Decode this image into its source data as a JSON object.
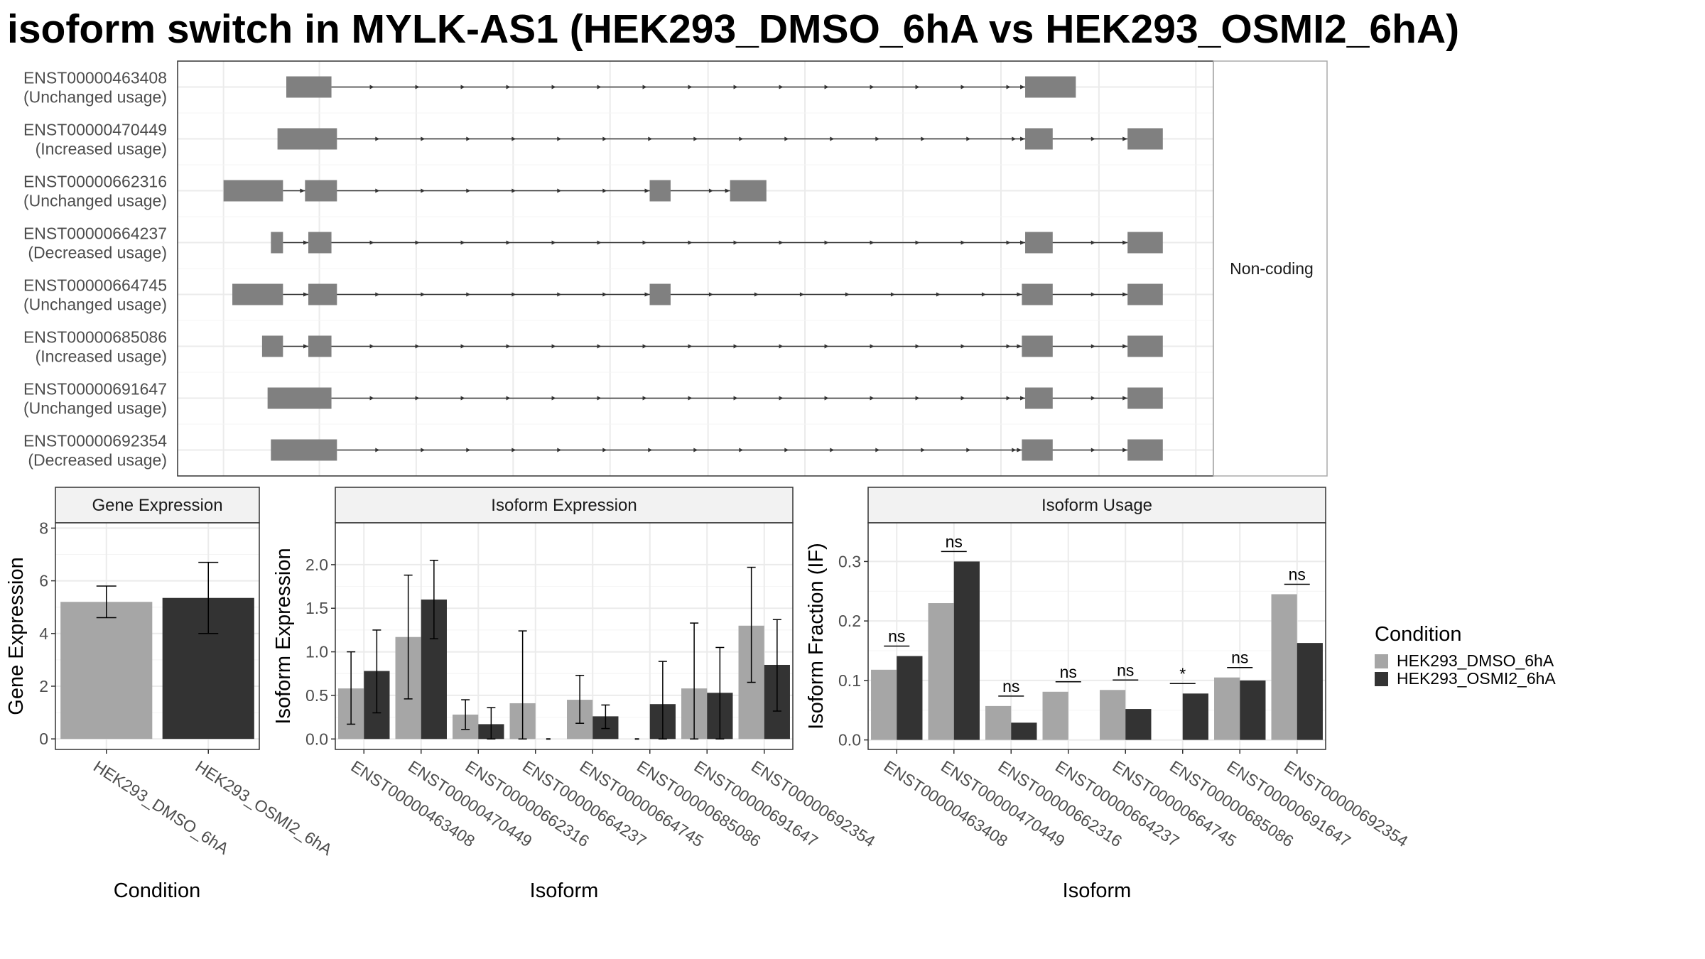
{
  "title": "isoform switch in MYLK-AS1 (HEK293_DMSO_6hA vs HEK293_OSMI2_6hA)",
  "colors": {
    "dmso": "#a6a6a6",
    "osmi": "#333333",
    "exon": "#808080",
    "strip": "#f2f2f2",
    "grid": "#ebebeb"
  },
  "chart_data": [
    {
      "type": "gene_structure",
      "facet_label": "Non-coding",
      "isoforms": [
        {
          "id": "ENST00000463408",
          "usage": "(Unchanged usage)",
          "exons": [
            [
              260,
              301
            ],
            [
              931,
              977
            ]
          ]
        },
        {
          "id": "ENST00000470449",
          "usage": "(Increased usage)",
          "exons": [
            [
              252,
              306
            ],
            [
              931,
              956
            ],
            [
              1024,
              1056
            ]
          ]
        },
        {
          "id": "ENST00000662316",
          "usage": "(Unchanged usage)",
          "exons": [
            [
              203,
              257
            ],
            [
              277,
              306
            ],
            [
              590,
              609
            ],
            [
              663,
              696
            ]
          ]
        },
        {
          "id": "ENST00000664237",
          "usage": "(Decreased usage)",
          "exons": [
            [
              246,
              257
            ],
            [
              280,
              301
            ],
            [
              931,
              956
            ],
            [
              1024,
              1056
            ]
          ]
        },
        {
          "id": "ENST00000664745",
          "usage": "(Unchanged usage)",
          "exons": [
            [
              211,
              257
            ],
            [
              280,
              306
            ],
            [
              590,
              609
            ],
            [
              928,
              956
            ],
            [
              1024,
              1056
            ]
          ]
        },
        {
          "id": "ENST00000685086",
          "usage": "(Increased usage)",
          "exons": [
            [
              238,
              257
            ],
            [
              280,
              301
            ],
            [
              928,
              956
            ],
            [
              1024,
              1056
            ]
          ]
        },
        {
          "id": "ENST00000691647",
          "usage": "(Unchanged usage)",
          "exons": [
            [
              243,
              301
            ],
            [
              931,
              956
            ],
            [
              1024,
              1056
            ]
          ]
        },
        {
          "id": "ENST00000692354",
          "usage": "(Decreased usage)",
          "exons": [
            [
              246,
              306
            ],
            [
              928,
              956
            ],
            [
              1024,
              1056
            ]
          ]
        }
      ]
    },
    {
      "type": "bar",
      "title": "Gene Expression",
      "xlabel": "Condition",
      "ylabel": "Gene Expression",
      "categories": [
        "HEK293_DMSO_6hA",
        "HEK293_OSMI2_6hA"
      ],
      "values": [
        5.2,
        5.35
      ],
      "error_low": [
        4.6,
        4.0
      ],
      "error_high": [
        5.8,
        6.7
      ],
      "yticks": [
        0,
        2,
        4,
        6,
        8
      ],
      "ylim": [
        -0.4,
        8.2
      ]
    },
    {
      "type": "bar",
      "title": "Isoform Expression",
      "xlabel": "Isoform",
      "ylabel": "Isoform Expression",
      "categories": [
        "ENST00000463408",
        "ENST00000470449",
        "ENST00000662316",
        "ENST00000664237",
        "ENST00000664745",
        "ENST00000685086",
        "ENST00000691647",
        "ENST00000692354"
      ],
      "yticks": [
        0.0,
        0.5,
        1.0,
        1.5,
        2.0
      ],
      "ylim": [
        -0.12,
        2.48
      ],
      "series": [
        {
          "name": "HEK293_DMSO_6hA",
          "values": [
            0.58,
            1.17,
            0.28,
            0.41,
            0.45,
            0.0,
            0.58,
            1.3
          ],
          "error_low": [
            0.17,
            0.46,
            0.11,
            0.0,
            0.18,
            0.0,
            0.0,
            0.65
          ],
          "error_high": [
            1.0,
            1.88,
            0.45,
            1.24,
            0.73,
            0.0,
            1.33,
            1.97
          ]
        },
        {
          "name": "HEK293_OSMI2_6hA",
          "values": [
            0.78,
            1.6,
            0.17,
            0.0,
            0.26,
            0.4,
            0.53,
            0.85
          ],
          "error_low": [
            0.3,
            1.15,
            0.0,
            0.0,
            0.12,
            0.0,
            0.0,
            0.32
          ],
          "error_high": [
            1.25,
            2.05,
            0.36,
            0.0,
            0.39,
            0.89,
            1.05,
            1.37
          ]
        }
      ]
    },
    {
      "type": "bar",
      "title": "Isoform Usage",
      "xlabel": "Isoform",
      "ylabel": "Isoform Fraction (IF)",
      "categories": [
        "ENST00000463408",
        "ENST00000470449",
        "ENST00000662316",
        "ENST00000664237",
        "ENST00000664745",
        "ENST00000685086",
        "ENST00000691647",
        "ENST00000692354"
      ],
      "yticks": [
        0.0,
        0.1,
        0.2,
        0.3
      ],
      "ylim": [
        -0.016,
        0.365
      ],
      "significance": [
        "ns",
        "ns",
        "ns",
        "ns",
        "ns",
        "*",
        "ns",
        "ns"
      ],
      "series": [
        {
          "name": "HEK293_DMSO_6hA",
          "values": [
            0.118,
            0.23,
            0.057,
            0.081,
            0.084,
            0.0,
            0.105,
            0.245
          ]
        },
        {
          "name": "HEK293_OSMI2_6hA",
          "values": [
            0.141,
            0.3,
            0.029,
            0.0,
            0.052,
            0.078,
            0.1,
            0.163
          ]
        }
      ]
    }
  ],
  "legend": {
    "title": "Condition",
    "items": [
      {
        "label": "HEK293_DMSO_6hA",
        "color": "#a6a6a6"
      },
      {
        "label": "HEK293_OSMI2_6hA",
        "color": "#333333"
      }
    ]
  }
}
